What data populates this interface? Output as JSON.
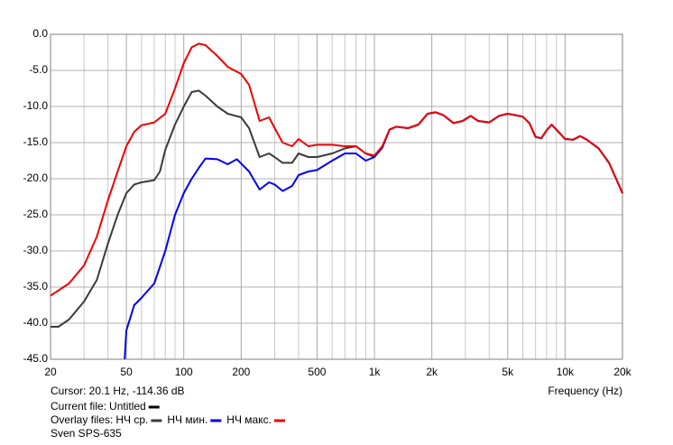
{
  "chart_data": {
    "type": "line",
    "x_label": "Frequency (Hz)",
    "cursor": "Cursor: 20.1 Hz, -114.36 dB",
    "current_file_label": "Current file:",
    "current_file": "Untitled",
    "current_file_color": "#000000",
    "overlay_label": "Overlay files:",
    "footer": "Sven SPS-635",
    "log_x": true,
    "grid": true,
    "xlim": [
      20,
      20000
    ],
    "xticks": [
      20,
      50,
      100,
      200,
      500,
      {
        "value": 1000,
        "label": "1k"
      },
      {
        "value": 2000,
        "label": "2k"
      },
      {
        "value": 5000,
        "label": "5k"
      },
      {
        "value": 10000,
        "label": "10k"
      },
      {
        "value": 20000,
        "label": "20k"
      }
    ],
    "xgrid": [
      30,
      40,
      60,
      70,
      80,
      90,
      300,
      400,
      600,
      700,
      800,
      900,
      3000,
      4000,
      6000,
      7000,
      8000,
      9000
    ],
    "ylim": [
      -45,
      0
    ],
    "yticks": [
      {
        "value": 0,
        "label": "0.0"
      },
      {
        "value": -5,
        "label": "-5.0"
      },
      {
        "value": -10,
        "label": "-10.0"
      },
      {
        "value": -15,
        "label": "-15.0"
      },
      {
        "value": -20,
        "label": "-20.0"
      },
      {
        "value": -25,
        "label": "-25.0"
      },
      {
        "value": -30,
        "label": "-30.0"
      },
      {
        "value": -35,
        "label": "-35.0"
      },
      {
        "value": -40,
        "label": "-40.0"
      },
      {
        "value": -45,
        "label": "-45.0"
      }
    ],
    "series": [
      {
        "name": "НЧ ср.",
        "color": "#3a3a3a",
        "x": [
          20,
          22,
          25,
          30,
          35,
          40,
          45,
          50,
          55,
          60,
          70,
          75,
          80,
          90,
          100,
          110,
          120,
          130,
          150,
          170,
          200,
          220,
          250,
          280,
          300,
          330,
          370,
          400,
          450,
          500,
          600,
          700,
          800,
          900,
          1000,
          1100,
          1200,
          1300,
          1500,
          1700,
          1900,
          2100,
          2300,
          2600,
          2900,
          3200,
          3500,
          4000,
          4500,
          5000,
          5500,
          6000,
          6500,
          7000,
          7500,
          8000,
          8500,
          9000,
          10000,
          11000,
          12000,
          13000,
          15000,
          17000,
          20000
        ],
        "values": [
          -40.5,
          -40.5,
          -39.5,
          -37,
          -34,
          -29,
          -25,
          -22,
          -20.8,
          -20.5,
          -20.2,
          -19,
          -16,
          -12.5,
          -10,
          -8,
          -7.8,
          -8.5,
          -10,
          -11,
          -11.5,
          -13,
          -17,
          -16.5,
          -17,
          -17.8,
          -17.8,
          -16.5,
          -17,
          -17,
          -16.5,
          -15.8,
          -15.5,
          -16.5,
          -17,
          -15.6,
          -13.2,
          -12.8,
          -13,
          -12.5,
          -11,
          -10.8,
          -11.2,
          -12.3,
          -12,
          -11.3,
          -12,
          -12.2,
          -11.3,
          -11,
          -11.2,
          -11.4,
          -12.3,
          -14.2,
          -14.4,
          -13.3,
          -12.5,
          -13.2,
          -14.5,
          -14.6,
          -14.1,
          -14.6,
          -15.8,
          -17.8,
          -22
        ]
      },
      {
        "name": "НЧ мин.",
        "color": "#0000ee",
        "x": [
          49,
          50,
          55,
          60,
          70,
          80,
          90,
          100,
          110,
          120,
          130,
          150,
          170,
          190,
          220,
          250,
          280,
          300,
          330,
          370,
          400,
          450,
          500,
          600,
          700,
          800,
          900,
          1000,
          1100,
          1200,
          1300,
          1500,
          1700,
          1900,
          2100,
          2300,
          2600,
          2900,
          3200,
          3500,
          4000,
          4500,
          5000,
          5500,
          6000,
          6500,
          7000,
          7500,
          8000,
          8500,
          9000,
          10000,
          11000,
          12000,
          13000,
          15000,
          17000,
          20000
        ],
        "values": [
          -45,
          -41,
          -37.5,
          -36.5,
          -34.5,
          -30,
          -25,
          -22,
          -20,
          -18.5,
          -17.2,
          -17.3,
          -18,
          -17.3,
          -19,
          -21.5,
          -20.5,
          -20.8,
          -21.7,
          -21,
          -19.5,
          -19,
          -18.8,
          -17.5,
          -16.5,
          -16.5,
          -17.5,
          -17,
          -15.7,
          -13.2,
          -12.8,
          -13,
          -12.5,
          -11,
          -10.8,
          -11.2,
          -12.3,
          -12,
          -11.3,
          -12,
          -12.2,
          -11.3,
          -11,
          -11.2,
          -11.4,
          -12.3,
          -14.2,
          -14.4,
          -13.3,
          -12.5,
          -13.2,
          -14.5,
          -14.6,
          -14.1,
          -14.6,
          -15.8,
          -17.8,
          -22
        ]
      },
      {
        "name": "НЧ макс.",
        "color": "#ee0000",
        "x": [
          20,
          25,
          30,
          35,
          40,
          45,
          50,
          55,
          60,
          70,
          80,
          90,
          100,
          110,
          120,
          130,
          150,
          170,
          200,
          220,
          250,
          280,
          300,
          330,
          370,
          400,
          450,
          500,
          600,
          700,
          800,
          900,
          1000,
          1100,
          1200,
          1300,
          1500,
          1700,
          1900,
          2100,
          2300,
          2600,
          2900,
          3200,
          3500,
          4000,
          4500,
          5000,
          5500,
          6000,
          6500,
          7000,
          7500,
          8000,
          8500,
          9000,
          10000,
          11000,
          12000,
          13000,
          15000,
          17000,
          20000
        ],
        "values": [
          -36.2,
          -34.5,
          -32,
          -28,
          -23,
          -19,
          -15.5,
          -13.5,
          -12.6,
          -12.2,
          -11,
          -7.5,
          -4,
          -1.8,
          -1.3,
          -1.5,
          -3,
          -4.5,
          -5.5,
          -7,
          -12,
          -11.5,
          -13,
          -15,
          -15.5,
          -14.5,
          -15.5,
          -15.3,
          -15.3,
          -15.5,
          -15.5,
          -16.5,
          -16.8,
          -15.5,
          -13.2,
          -12.8,
          -13,
          -12.5,
          -11,
          -10.8,
          -11.2,
          -12.3,
          -12,
          -11.3,
          -12,
          -12.2,
          -11.3,
          -11,
          -11.2,
          -11.4,
          -12.3,
          -14.2,
          -14.4,
          -13.3,
          -12.5,
          -13.2,
          -14.5,
          -14.6,
          -14.1,
          -14.6,
          -15.8,
          -17.8,
          -22
        ]
      }
    ]
  }
}
